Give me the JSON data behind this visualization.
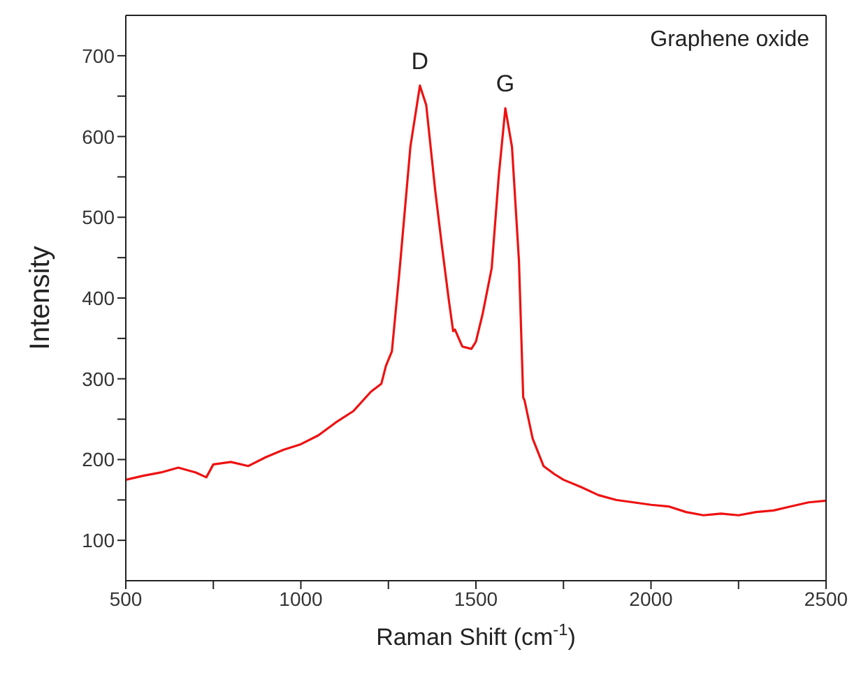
{
  "chart_data": {
    "type": "line",
    "xlabel": "Raman Shift (cm$^{-1}$)",
    "ylabel": "Intensity",
    "annotations": [
      "Graphene oxide",
      {
        "text": "D",
        "x": 1340,
        "y": 663
      },
      {
        "text": "G",
        "x": 1584,
        "y": 635
      }
    ],
    "x": [
      500,
      550,
      600,
      650,
      700,
      730,
      750,
      800,
      850,
      900,
      950,
      1000,
      1050,
      1100,
      1150,
      1200,
      1230,
      1243,
      1260,
      1281,
      1313,
      1340,
      1358,
      1384,
      1403,
      1423,
      1435,
      1440,
      1461,
      1487,
      1500,
      1519,
      1545,
      1565,
      1584,
      1603,
      1623,
      1635,
      1639,
      1662,
      1693,
      1724,
      1750,
      1800,
      1850,
      1900,
      1950,
      2000,
      2050,
      2100,
      2150,
      2200,
      2250,
      2300,
      2350,
      2400,
      2450,
      2500
    ],
    "series": [
      {
        "color": "#ee1111",
        "values": [
          175,
          180,
          184,
          190,
          184,
          178,
          194,
          197,
          192,
          203,
          212,
          219,
          230,
          246,
          260,
          284,
          294,
          316,
          334,
          430,
          588,
          663,
          639,
          532,
          464,
          396,
          359,
          361,
          340,
          337,
          346,
          380,
          437,
          550,
          635,
          587,
          445,
          277,
          273,
          226,
          192,
          182,
          175,
          166,
          156,
          150,
          147,
          144,
          142,
          135,
          131,
          133,
          131,
          135,
          137,
          142,
          147,
          149
        ]
      }
    ],
    "xlim": [
      500,
      2500
    ],
    "xticks": [
      500,
      {
        "value": 750,
        "label": null
      },
      1000,
      {
        "value": 1250,
        "label": null
      },
      1500,
      {
        "value": 1750,
        "label": null
      },
      2000,
      {
        "value": 2250,
        "label": null
      },
      2500
    ],
    "ylim": [
      50,
      750
    ],
    "yticks": [
      100,
      {
        "value": 150,
        "label": null
      },
      200,
      {
        "value": 250,
        "label": null
      },
      300,
      {
        "value": 350,
        "label": null
      },
      400,
      {
        "value": 450,
        "label": null
      },
      500,
      {
        "value": 550,
        "label": null
      },
      600,
      {
        "value": 650,
        "label": null
      },
      700
    ],
    "grid": false,
    "legend": false,
    "marker": "none",
    "line_style": "solid"
  }
}
